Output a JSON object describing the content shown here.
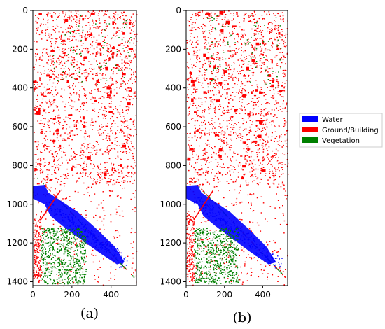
{
  "chart_data": [
    {
      "type": "heatmap",
      "caption": "(a)",
      "xlim": [
        0,
        530
      ],
      "ylim": [
        1420,
        0
      ],
      "xticks": [
        0,
        200,
        400
      ],
      "yticks": [
        0,
        200,
        400,
        600,
        800,
        1000,
        1200,
        1400
      ],
      "grid": false
    },
    {
      "type": "heatmap",
      "caption": "(b)",
      "xlim": [
        0,
        530
      ],
      "ylim": [
        1420,
        0
      ],
      "xticks": [
        0,
        200,
        400
      ],
      "yticks": [
        0,
        200,
        400,
        600,
        800,
        1000,
        1200,
        1400
      ],
      "grid": false
    }
  ],
  "legend": {
    "placement": "right",
    "items": [
      {
        "label": "Water",
        "color": "#0000ff"
      },
      {
        "label": "Ground/Building",
        "color": "#ff0000"
      },
      {
        "label": "Vegetation",
        "color": "#008000"
      }
    ]
  },
  "colors": {
    "water": "#0000ff",
    "ground": "#ff0000",
    "vegetation": "#008000",
    "background": "#ffffff"
  }
}
